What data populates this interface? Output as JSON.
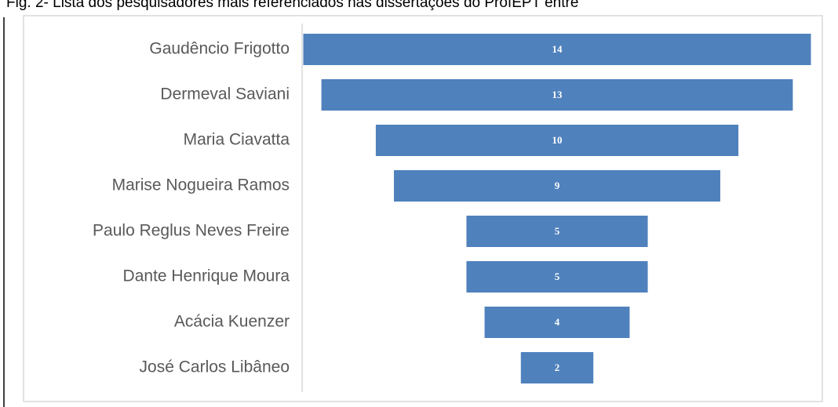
{
  "chart_data": {
    "type": "funnel",
    "title": "Fig. 2- Lista dos pesquisadores mais referenciados nas dissertações do ProfEPT entre",
    "categories": [
      "Gaudêncio Frigotto",
      "Dermeval Saviani",
      "Maria Ciavatta",
      "Marise Nogueira Ramos",
      "Paulo Reglus Neves Freire",
      "Dante Henrique Moura",
      "Acácia Kuenzer",
      "José Carlos Libâneo"
    ],
    "values": [
      14,
      13,
      10,
      9,
      5,
      5,
      4,
      2
    ],
    "color": "#4f81bd"
  }
}
